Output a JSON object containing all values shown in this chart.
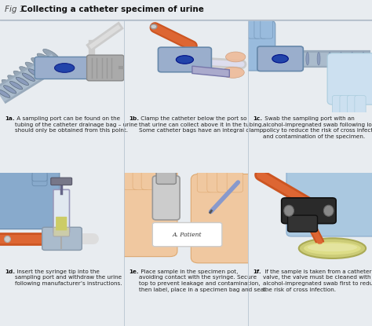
{
  "title_prefix": "Fig 1. ",
  "title_main": "Collecting a catheter specimen of urine",
  "bg_color": "#e8ecf0",
  "title_bg": "#e8ecf0",
  "panel_illus_bg": [
    "#d8e4ee",
    "#d8e4ee",
    "#d8e4ee",
    "#d8e4ee",
    "#d8e4ee",
    "#d8e4ee"
  ],
  "panel_text_bg": "#f0f2f4",
  "grid_rows": 2,
  "grid_cols": 3,
  "panels": [
    {
      "label": "1a.",
      "text": "A sampling port can be found on the\ntubing of the catheter drainage bag – urine\nshould only be obtained from this point."
    },
    {
      "label": "1b.",
      "text": "Clamp the catheter below the port so\nthat urine can collect above it in the tubing.\nSome catheter bags have an integral clamp."
    },
    {
      "label": "1c.",
      "text": "Swab the sampling port with an\nalcohol-impregnated swab following local\npolicy to reduce the risk of cross infection\nand contamination of the specimen."
    },
    {
      "label": "1d.",
      "text": "Insert the syringe tip into the\nsampling port and withdraw the urine\nfollowing manufacturer’s instructions."
    },
    {
      "label": "1e.",
      "text": "Place sample in the specimen pot,\navoiding contact with the syringe. Secure\ntop to prevent leakage and contamination,\nthen label, place in a specimen bag and seal."
    },
    {
      "label": "1f.",
      "text": "If the sample is taken from a catheter\nvalve, the valve must be cleaned with an\nalcohol-impregnated swab first to reduce\nthe risk of cross infection."
    }
  ]
}
